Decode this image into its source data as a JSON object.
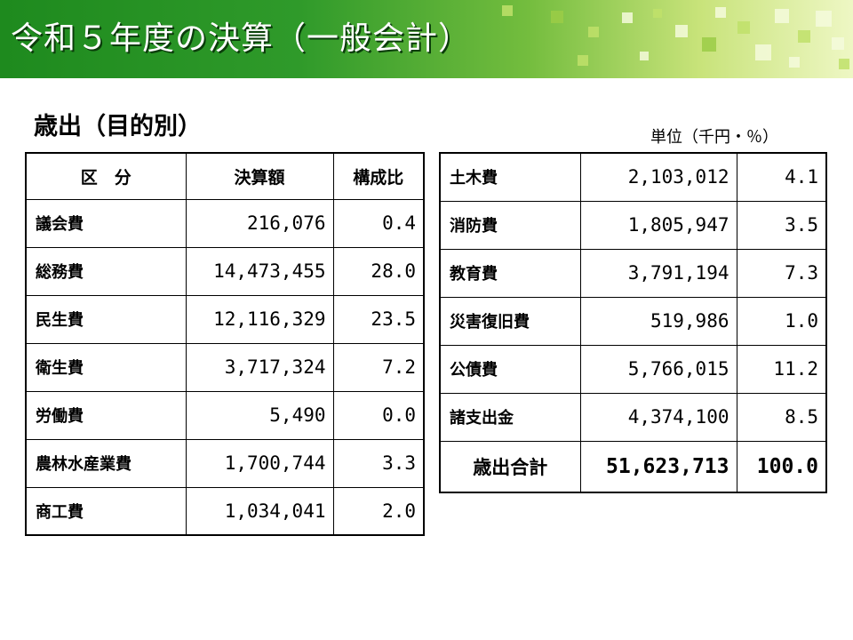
{
  "header": {
    "title": "令和５年度の決算（一般会計）"
  },
  "section": {
    "title": "歳出（目的別）",
    "unit": "単位（千円・％）"
  },
  "table": {
    "headers": [
      "区　分",
      "決算額",
      "構成比"
    ],
    "left_rows": [
      {
        "name": "議会費",
        "amount": "216,076",
        "ratio": "0.4"
      },
      {
        "name": "総務費",
        "amount": "14,473,455",
        "ratio": "28.0"
      },
      {
        "name": "民生費",
        "amount": "12,116,329",
        "ratio": "23.5"
      },
      {
        "name": "衛生費",
        "amount": "3,717,324",
        "ratio": "7.2"
      },
      {
        "name": "労働費",
        "amount": "5,490",
        "ratio": "0.0"
      },
      {
        "name": "農林水産業費",
        "amount": "1,700,744",
        "ratio": "3.3"
      },
      {
        "name": "商工費",
        "amount": "1,034,041",
        "ratio": "2.0"
      }
    ],
    "right_rows": [
      {
        "name": "土木費",
        "amount": "2,103,012",
        "ratio": "4.1"
      },
      {
        "name": "消防費",
        "amount": "1,805,947",
        "ratio": "3.5"
      },
      {
        "name": "教育費",
        "amount": "3,791,194",
        "ratio": "7.3"
      },
      {
        "name": "災害復旧費",
        "amount": "519,986",
        "ratio": "1.0"
      },
      {
        "name": "公債費",
        "amount": "5,766,015",
        "ratio": "11.2"
      },
      {
        "name": "諸支出金",
        "amount": "4,374,100",
        "ratio": "8.5"
      }
    ],
    "total": {
      "name": "歳出合計",
      "amount": "51,623,713",
      "ratio": "100.0"
    }
  },
  "colors": {
    "banner_dark": "#1e8a1e",
    "banner_light": "#c8e37a"
  }
}
